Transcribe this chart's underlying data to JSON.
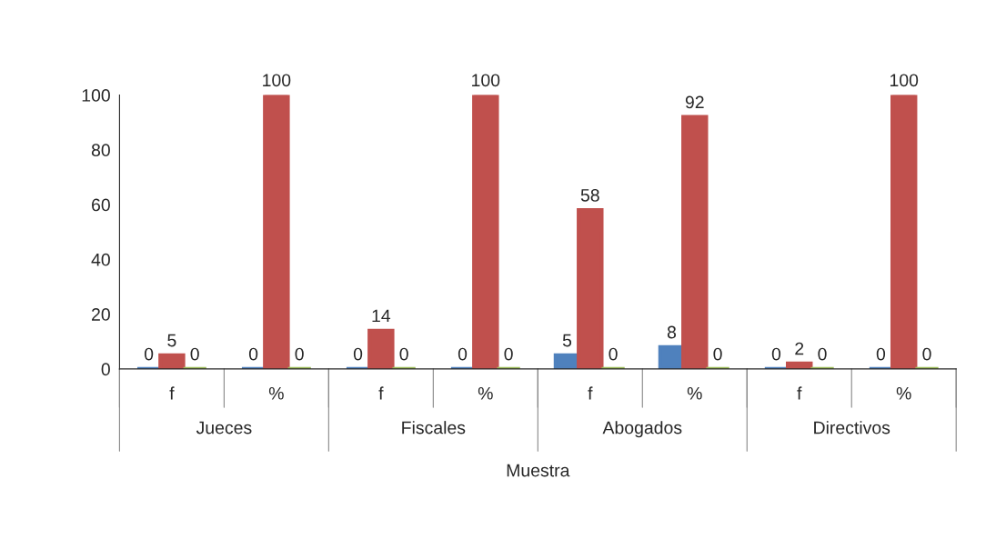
{
  "chart_data": {
    "type": "bar",
    "categories": [
      "f",
      "%",
      "f",
      "%",
      "f",
      "%",
      "f",
      "%"
    ],
    "series": [
      {
        "color": "#4f81bd",
        "values": [
          0,
          0,
          0,
          0,
          5,
          8,
          0,
          0
        ]
      },
      {
        "color": "#c0504d",
        "values": [
          5,
          100,
          14,
          100,
          58,
          92,
          2,
          100
        ]
      },
      {
        "color": "#9bbb59",
        "values": [
          0,
          0,
          0,
          0,
          0,
          0,
          0,
          0
        ]
      }
    ],
    "xlabel": "Muestra",
    "annotations": [
      "Jueces",
      "Fiscales",
      "Abogados",
      "Directivos"
    ],
    "ylim": [
      0,
      100
    ],
    "yticks": [
      0,
      20,
      40,
      60,
      80,
      100
    ],
    "data_labels": true,
    "grid": false,
    "legend": false
  }
}
